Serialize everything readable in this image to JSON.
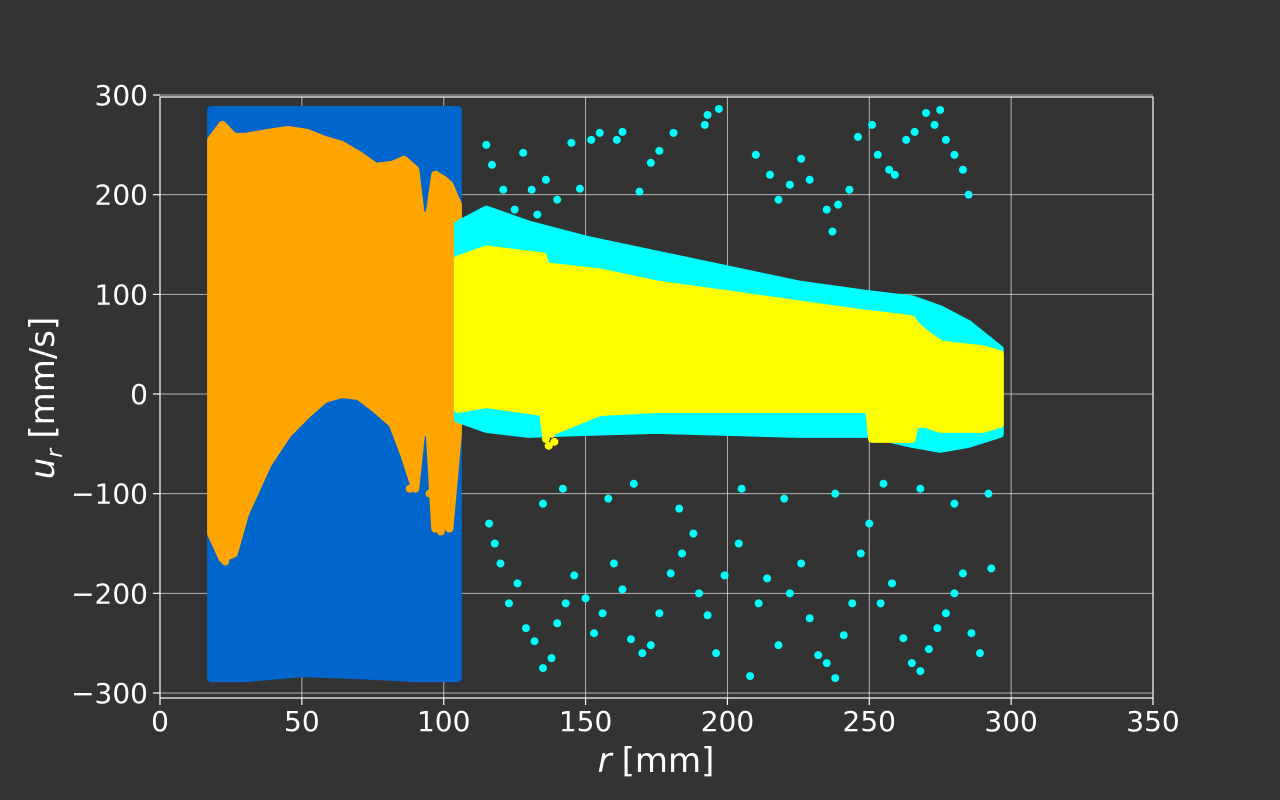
{
  "chart_data": {
    "type": "scatter",
    "title": "",
    "xlabel": {
      "var": "r",
      "unit": "[mm]"
    },
    "ylabel": {
      "var": "u",
      "sub": "r",
      "unit": "[mm/s]"
    },
    "xlim": [
      0,
      350
    ],
    "ylim": [
      -305,
      298
    ],
    "xticks": [
      0,
      50,
      100,
      150,
      200,
      250,
      300,
      350
    ],
    "yticks": [
      -300,
      -200,
      -100,
      0,
      100,
      200,
      300
    ],
    "xtick_labels": [
      "0",
      "50",
      "100",
      "150",
      "200",
      "250",
      "300",
      "350"
    ],
    "ytick_labels": [
      "−300",
      "−200",
      "−100",
      "0",
      "100",
      "200",
      "300"
    ],
    "grid": true,
    "legend": "none",
    "colors": {
      "background": "#333333",
      "spine": "#ffffff",
      "grid": "#dddddd",
      "text": "#ffffff"
    },
    "series": [
      {
        "color": "#0066cc",
        "x_range": [
          18,
          105
        ],
        "envelope": {
          "x": [
            18,
            30,
            50,
            70,
            90,
            105
          ],
          "y_lo": [
            -285,
            -285,
            -280,
            -282,
            -285,
            -285
          ],
          "y_hi": [
            285,
            285,
            285,
            285,
            285,
            285
          ]
        }
      },
      {
        "color": "#ffa500",
        "x_range": [
          18,
          105
        ],
        "envelope": {
          "x": [
            18,
            22,
            26,
            30,
            38,
            45,
            52,
            58,
            64,
            70,
            76,
            82,
            86,
            90,
            92,
            95,
            97,
            100,
            102,
            105
          ],
          "y_lo": [
            -140,
            -165,
            -160,
            -120,
            -70,
            -40,
            -20,
            -5,
            0,
            -2,
            -15,
            -30,
            -60,
            -95,
            -40,
            -35,
            -135,
            -130,
            -135,
            -40
          ],
          "y_hi": [
            255,
            270,
            258,
            258,
            262,
            265,
            262,
            255,
            250,
            240,
            228,
            230,
            235,
            225,
            178,
            180,
            220,
            215,
            210,
            190
          ]
        },
        "sparse_points": [
          [
            22,
            -150
          ],
          [
            23,
            -168
          ],
          [
            24,
            -162
          ],
          [
            25,
            -155
          ],
          [
            21,
            -140
          ],
          [
            26,
            -130
          ],
          [
            88,
            -95
          ],
          [
            90,
            -80
          ],
          [
            95,
            -100
          ],
          [
            100,
            -125
          ],
          [
            99,
            -138
          ],
          [
            102,
            -132
          ],
          [
            101,
            -120
          ]
        ]
      },
      {
        "color": "#00ffff",
        "x_range": [
          105,
          296
        ],
        "envelope": {
          "x": [
            105,
            115,
            130,
            150,
            175,
            200,
            225,
            250,
            265,
            275,
            285,
            296
          ],
          "y_lo": [
            -25,
            -35,
            -40,
            -38,
            -36,
            -38,
            -40,
            -40,
            -50,
            -55,
            -50,
            -40
          ],
          "y_hi": [
            170,
            185,
            170,
            155,
            140,
            125,
            110,
            100,
            95,
            85,
            70,
            45
          ]
        },
        "outliers": [
          [
            115,
            250
          ],
          [
            117,
            230
          ],
          [
            121,
            205
          ],
          [
            125,
            185
          ],
          [
            128,
            242
          ],
          [
            131,
            205
          ],
          [
            133,
            180
          ],
          [
            136,
            215
          ],
          [
            140,
            195
          ],
          [
            145,
            252
          ],
          [
            148,
            206
          ],
          [
            152,
            255
          ],
          [
            155,
            262
          ],
          [
            161,
            255
          ],
          [
            163,
            263
          ],
          [
            169,
            203
          ],
          [
            173,
            232
          ],
          [
            176,
            244
          ],
          [
            181,
            262
          ],
          [
            192,
            270
          ],
          [
            193,
            280
          ],
          [
            197,
            286
          ],
          [
            210,
            240
          ],
          [
            215,
            220
          ],
          [
            218,
            195
          ],
          [
            222,
            210
          ],
          [
            226,
            236
          ],
          [
            229,
            215
          ],
          [
            235,
            185
          ],
          [
            237,
            163
          ],
          [
            239,
            190
          ],
          [
            243,
            205
          ],
          [
            246,
            258
          ],
          [
            251,
            270
          ],
          [
            253,
            240
          ],
          [
            257,
            225
          ],
          [
            259,
            220
          ],
          [
            263,
            255
          ],
          [
            266,
            263
          ],
          [
            270,
            282
          ],
          [
            273,
            270
          ],
          [
            275,
            285
          ],
          [
            277,
            255
          ],
          [
            280,
            240
          ],
          [
            283,
            225
          ],
          [
            285,
            200
          ],
          [
            116,
            -130
          ],
          [
            118,
            -150
          ],
          [
            120,
            -170
          ],
          [
            123,
            -210
          ],
          [
            126,
            -190
          ],
          [
            129,
            -235
          ],
          [
            132,
            -248
          ],
          [
            135,
            -275
          ],
          [
            138,
            -265
          ],
          [
            140,
            -230
          ],
          [
            143,
            -210
          ],
          [
            146,
            -182
          ],
          [
            150,
            -205
          ],
          [
            153,
            -240
          ],
          [
            156,
            -220
          ],
          [
            160,
            -170
          ],
          [
            163,
            -196
          ],
          [
            166,
            -246
          ],
          [
            170,
            -260
          ],
          [
            173,
            -252
          ],
          [
            176,
            -220
          ],
          [
            180,
            -180
          ],
          [
            184,
            -160
          ],
          [
            188,
            -140
          ],
          [
            190,
            -200
          ],
          [
            193,
            -222
          ],
          [
            196,
            -260
          ],
          [
            199,
            -182
          ],
          [
            204,
            -150
          ],
          [
            208,
            -283
          ],
          [
            211,
            -210
          ],
          [
            214,
            -185
          ],
          [
            218,
            -252
          ],
          [
            222,
            -200
          ],
          [
            226,
            -170
          ],
          [
            229,
            -225
          ],
          [
            232,
            -262
          ],
          [
            235,
            -270
          ],
          [
            238,
            -285
          ],
          [
            241,
            -242
          ],
          [
            244,
            -210
          ],
          [
            247,
            -160
          ],
          [
            250,
            -130
          ],
          [
            254,
            -210
          ],
          [
            258,
            -190
          ],
          [
            262,
            -245
          ],
          [
            265,
            -270
          ],
          [
            268,
            -278
          ],
          [
            271,
            -256
          ],
          [
            274,
            -235
          ],
          [
            277,
            -220
          ],
          [
            280,
            -200
          ],
          [
            283,
            -180
          ],
          [
            286,
            -240
          ],
          [
            289,
            -260
          ],
          [
            293,
            -175
          ],
          [
            135,
            -110
          ],
          [
            142,
            -95
          ],
          [
            158,
            -105
          ],
          [
            167,
            -90
          ],
          [
            183,
            -115
          ],
          [
            205,
            -95
          ],
          [
            220,
            -105
          ],
          [
            238,
            -100
          ],
          [
            255,
            -90
          ],
          [
            268,
            -95
          ],
          [
            280,
            -110
          ],
          [
            292,
            -100
          ]
        ]
      },
      {
        "color": "#ffff00",
        "x_range": [
          105,
          296
        ],
        "envelope": {
          "x": [
            105,
            115,
            135,
            136,
            155,
            175,
            200,
            225,
            250,
            251,
            265,
            266,
            270,
            275,
            280,
            290,
            296
          ],
          "y_lo": [
            -15,
            -10,
            -18,
            -40,
            -18,
            -15,
            -15,
            -15,
            -15,
            -45,
            -45,
            -30,
            -30,
            -35,
            -35,
            -35,
            -30
          ],
          "y_hi": [
            135,
            145,
            138,
            128,
            122,
            110,
            100,
            90,
            80,
            80,
            75,
            70,
            60,
            50,
            48,
            45,
            40
          ]
        },
        "sparse_points": [
          [
            136,
            -45
          ],
          [
            137,
            -52
          ],
          [
            138,
            -40
          ],
          [
            139,
            -48
          ]
        ]
      }
    ]
  }
}
